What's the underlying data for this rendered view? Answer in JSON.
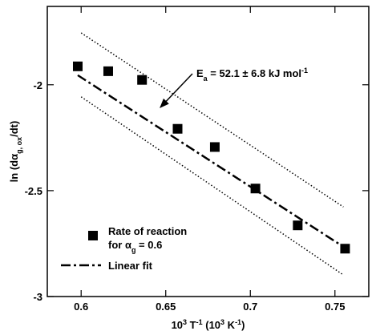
{
  "chart_data": {
    "type": "scatter",
    "x_label": [
      "10",
      "3",
      " T",
      "-1",
      " (10",
      "3",
      " K",
      "-1",
      ")"
    ],
    "y_label": [
      "ln (dα",
      "g, ox",
      "/dt)"
    ],
    "annotation": [
      "E",
      "a",
      " = 52.1 ± 6.8 kJ mol",
      "-1"
    ],
    "xlim": [
      0.58,
      0.77
    ],
    "xticks": [
      0.6,
      0.65,
      0.7,
      0.75
    ],
    "ylim": [
      -3,
      -1.63
    ],
    "yticks": [
      -2,
      -2.5,
      -3
    ],
    "series": [
      {
        "name": "Rate of reaction",
        "name_line2": [
          "for α",
          "g",
          " = 0.6"
        ],
        "color": "#000000",
        "marker": "square",
        "x": [
          0.598,
          0.616,
          0.636,
          0.657,
          0.679,
          0.703,
          0.728,
          0.756
        ],
        "values": [
          -1.913,
          -1.936,
          -1.977,
          -2.208,
          -2.294,
          -2.49,
          -2.664,
          -2.774
        ]
      },
      {
        "name": "Linear fit",
        "color": "#000000",
        "style": "dashdot",
        "x": [
          0.598,
          0.756
        ],
        "values": [
          -1.955,
          -2.77
        ]
      },
      {
        "color": "#000000",
        "style": "dotted",
        "x": [
          0.6,
          0.755
        ],
        "values": [
          -1.755,
          -2.577
        ]
      },
      {
        "color": "#000000",
        "style": "dotted",
        "x": [
          0.6,
          0.755
        ],
        "values": [
          -2.057,
          -2.898
        ]
      }
    ]
  }
}
